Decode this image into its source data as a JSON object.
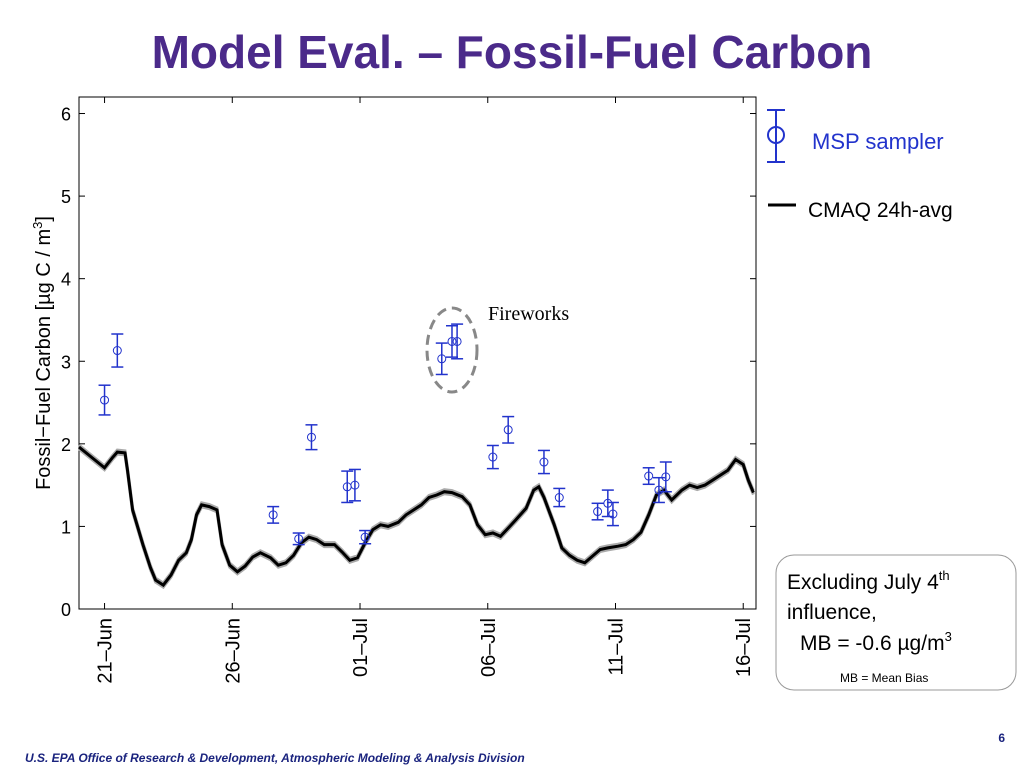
{
  "title": "Model Eval. – Fossil-Fuel Carbon",
  "chart_data": {
    "type": "line",
    "y_label": [
      "Fossil−Fuel Carbon [µg C / m",
      "3",
      "]"
    ],
    "annotation": "Fireworks",
    "xlim": [
      20,
      46.5
    ],
    "xticks": [
      {
        "value": 21,
        "label": "21–Jun"
      },
      {
        "value": 26,
        "label": "26–Jun"
      },
      {
        "value": 31,
        "label": "01–Jul"
      },
      {
        "value": 36,
        "label": "06–Jul"
      },
      {
        "value": 41,
        "label": "11–Jul"
      },
      {
        "value": 46,
        "label": "16–Jul"
      }
    ],
    "ylim": [
      0,
      6.2
    ],
    "yticks": [
      0,
      1,
      2,
      3,
      4,
      5,
      6
    ],
    "series": [
      {
        "name": "MSP sampler",
        "color": "#2233cc",
        "x": [
          21.0,
          21.5,
          27.6,
          28.6,
          29.1,
          30.5,
          30.8,
          31.2,
          34.2,
          34.6,
          34.8,
          36.2,
          36.8,
          38.2,
          38.8,
          40.3,
          40.7,
          40.9,
          42.3,
          42.7,
          42.97
        ],
        "values": [
          2.53,
          3.13,
          1.14,
          0.85,
          2.08,
          1.48,
          1.5,
          0.87,
          3.03,
          3.24,
          3.24,
          1.84,
          2.17,
          1.78,
          1.35,
          1.18,
          1.28,
          1.15,
          1.61,
          1.44,
          1.6
        ],
        "errors": [
          0.18,
          0.2,
          0.1,
          0.07,
          0.15,
          0.19,
          0.19,
          0.08,
          0.19,
          0.19,
          0.21,
          0.14,
          0.16,
          0.14,
          0.11,
          0.1,
          0.16,
          0.14,
          0.1,
          0.15,
          0.18
        ]
      },
      {
        "name": "CMAQ 24h-avg",
        "color": "#000000",
        "x": [
          20.0,
          20.6,
          21.0,
          21.3,
          21.5,
          21.8,
          21.9,
          22.1,
          22.5,
          22.8,
          23.0,
          23.3,
          23.6,
          23.9,
          24.2,
          24.4,
          24.6,
          24.8,
          25.1,
          25.4,
          25.6,
          25.9,
          26.2,
          26.5,
          26.8,
          27.1,
          27.5,
          27.8,
          28.1,
          28.4,
          28.7,
          29.0,
          29.3,
          29.6,
          30.0,
          30.3,
          30.6,
          30.9,
          31.2,
          31.5,
          31.8,
          32.1,
          32.5,
          32.8,
          33.1,
          33.4,
          33.7,
          34.0,
          34.3,
          34.6,
          35.0,
          35.3,
          35.6,
          35.9,
          36.2,
          36.5,
          36.8,
          37.1,
          37.5,
          37.8,
          38.0,
          38.2,
          38.6,
          38.9,
          39.2,
          39.5,
          39.8,
          40.1,
          40.4,
          40.7,
          41.1,
          41.4,
          41.7,
          42.0,
          42.3,
          42.6,
          42.9,
          43.2,
          43.6,
          43.9,
          44.2,
          44.5,
          44.8,
          45.1,
          45.4,
          45.7,
          46.0,
          46.2,
          46.4
        ],
        "values": [
          1.96,
          1.81,
          1.71,
          1.83,
          1.9,
          1.89,
          1.68,
          1.2,
          0.78,
          0.5,
          0.35,
          0.29,
          0.41,
          0.59,
          0.68,
          0.84,
          1.14,
          1.26,
          1.24,
          1.2,
          0.78,
          0.53,
          0.45,
          0.52,
          0.63,
          0.68,
          0.62,
          0.53,
          0.56,
          0.65,
          0.8,
          0.87,
          0.84,
          0.78,
          0.78,
          0.69,
          0.59,
          0.62,
          0.8,
          0.96,
          1.02,
          1.0,
          1.05,
          1.14,
          1.2,
          1.26,
          1.35,
          1.38,
          1.42,
          1.41,
          1.36,
          1.26,
          1.02,
          0.9,
          0.92,
          0.88,
          0.98,
          1.08,
          1.22,
          1.44,
          1.48,
          1.35,
          1.02,
          0.74,
          0.65,
          0.59,
          0.56,
          0.64,
          0.72,
          0.74,
          0.76,
          0.78,
          0.84,
          0.93,
          1.14,
          1.38,
          1.44,
          1.32,
          1.44,
          1.5,
          1.47,
          1.5,
          1.56,
          1.62,
          1.68,
          1.81,
          1.75,
          1.56,
          1.41
        ]
      }
    ]
  },
  "note": {
    "line1": "Excluding July 4",
    "line1_sup": "th",
    "line2": "influence,",
    "line3": "MB =  -0.6 µg/m",
    "line3_sup": "3",
    "footnote": "MB = Mean Bias"
  },
  "footer": "U.S. EPA Office of Research & Development, Atmospheric Modeling & Analysis Division",
  "page_number": 6
}
